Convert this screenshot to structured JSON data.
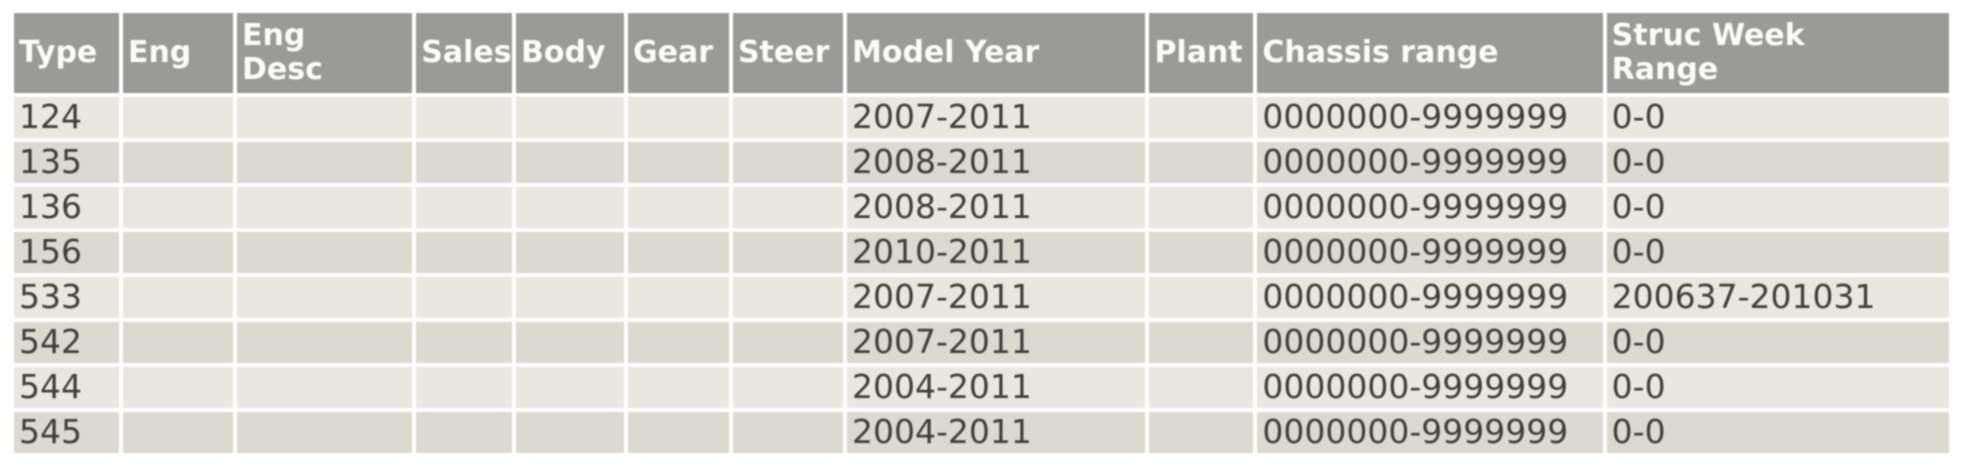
{
  "colors": {
    "header_bg": "#9a9a98",
    "header_text": "#fbfbfa",
    "row_light": "#e9e7e0",
    "row_dark": "#dcd9d0",
    "cell_text": "#403f3b",
    "page_bg": "#ffffff",
    "grid_line": "#ffffff"
  },
  "table": {
    "columns": [
      {
        "key": "type",
        "label": "Type"
      },
      {
        "key": "eng",
        "label": "Eng"
      },
      {
        "key": "eng_desc",
        "label": "Eng\nDesc"
      },
      {
        "key": "sales",
        "label": "Sales"
      },
      {
        "key": "body",
        "label": "Body"
      },
      {
        "key": "gear",
        "label": "Gear"
      },
      {
        "key": "steer",
        "label": "Steer"
      },
      {
        "key": "model_year",
        "label": "Model Year"
      },
      {
        "key": "plant",
        "label": "Plant"
      },
      {
        "key": "chassis_range",
        "label": "Chassis range"
      },
      {
        "key": "struc_week_range",
        "label": "Struc Week\nRange"
      }
    ],
    "rows": [
      {
        "cells": {
          "type": "124",
          "eng": "",
          "eng_desc": "",
          "sales": "",
          "body": "",
          "gear": "",
          "steer": "",
          "model_year": "2007-2011",
          "plant": "",
          "chassis_range": "0000000-9999999",
          "struc_week_range": "0-0"
        }
      },
      {
        "cells": {
          "type": "135",
          "eng": "",
          "eng_desc": "",
          "sales": "",
          "body": "",
          "gear": "",
          "steer": "",
          "model_year": "2008-2011",
          "plant": "",
          "chassis_range": "0000000-9999999",
          "struc_week_range": "0-0"
        }
      },
      {
        "cells": {
          "type": "136",
          "eng": "",
          "eng_desc": "",
          "sales": "",
          "body": "",
          "gear": "",
          "steer": "",
          "model_year": "2008-2011",
          "plant": "",
          "chassis_range": "0000000-9999999",
          "struc_week_range": "0-0"
        }
      },
      {
        "cells": {
          "type": "156",
          "eng": "",
          "eng_desc": "",
          "sales": "",
          "body": "",
          "gear": "",
          "steer": "",
          "model_year": "2010-2011",
          "plant": "",
          "chassis_range": "0000000-9999999",
          "struc_week_range": "0-0"
        }
      },
      {
        "cells": {
          "type": "533",
          "eng": "",
          "eng_desc": "",
          "sales": "",
          "body": "",
          "gear": "",
          "steer": "",
          "model_year": "2007-2011",
          "plant": "",
          "chassis_range": "0000000-9999999",
          "struc_week_range": "200637-201031"
        }
      },
      {
        "cells": {
          "type": "542",
          "eng": "",
          "eng_desc": "",
          "sales": "",
          "body": "",
          "gear": "",
          "steer": "",
          "model_year": "2007-2011",
          "plant": "",
          "chassis_range": "0000000-9999999",
          "struc_week_range": "0-0"
        }
      },
      {
        "cells": {
          "type": "544",
          "eng": "",
          "eng_desc": "",
          "sales": "",
          "body": "",
          "gear": "",
          "steer": "",
          "model_year": "2004-2011",
          "plant": "",
          "chassis_range": "0000000-9999999",
          "struc_week_range": "0-0"
        }
      },
      {
        "cells": {
          "type": "545",
          "eng": "",
          "eng_desc": "",
          "sales": "",
          "body": "",
          "gear": "",
          "steer": "",
          "model_year": "2004-2011",
          "plant": "",
          "chassis_range": "0000000-9999999",
          "struc_week_range": "0-0"
        }
      }
    ]
  }
}
